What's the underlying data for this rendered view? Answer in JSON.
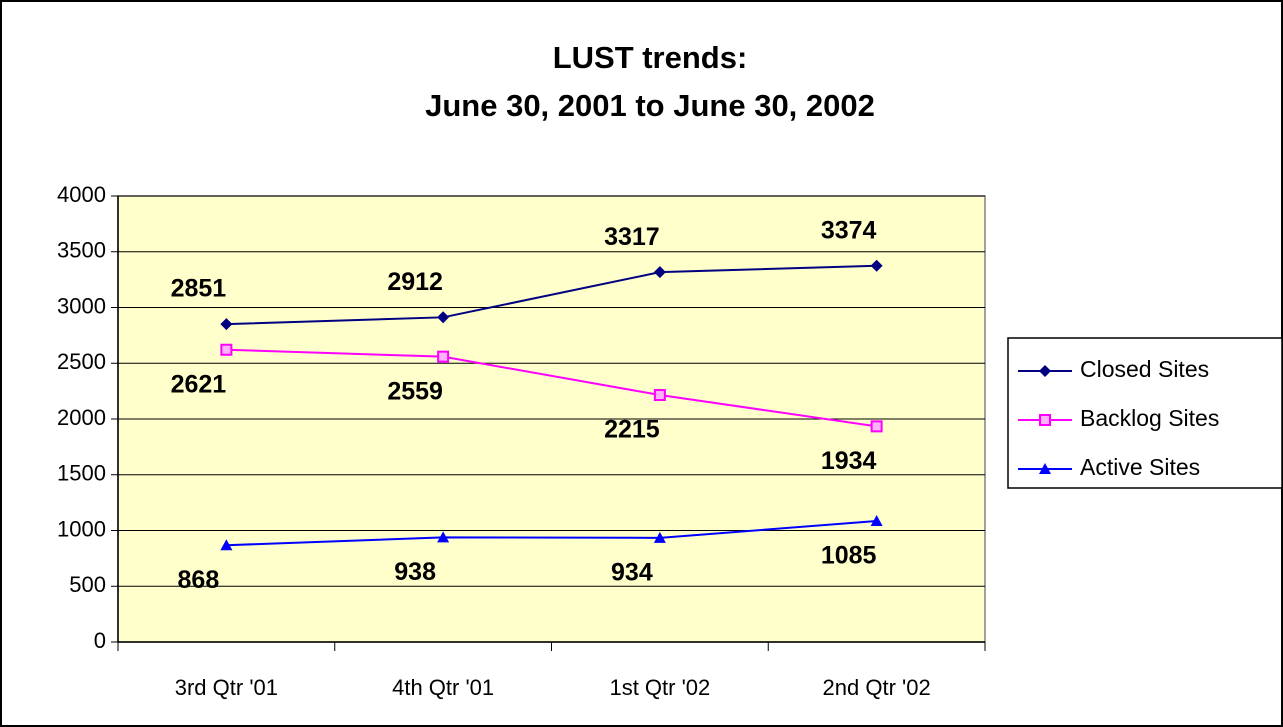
{
  "chart_data": {
    "type": "line",
    "title": [
      "LUST trends:",
      "June 30, 2001 to June 30, 2002"
    ],
    "categories": [
      "3rd Qtr '01",
      "4th Qtr '01",
      "1st Qtr '02",
      "2nd Qtr '02"
    ],
    "series": [
      {
        "name": "Closed Sites",
        "color": "#000080",
        "marker": "diamond",
        "label_side": "above",
        "values": [
          2851,
          2912,
          3317,
          3374
        ]
      },
      {
        "name": "Backlog Sites",
        "color": "#ff00ff",
        "marker": "square",
        "label_side": "below",
        "values": [
          2621,
          2559,
          2215,
          1934
        ]
      },
      {
        "name": "Active Sites",
        "color": "#0000ff",
        "marker": "triangle",
        "label_side": "below",
        "values": [
          868,
          938,
          934,
          1085
        ]
      }
    ],
    "ylim": [
      0,
      4000
    ],
    "yticks": [
      0,
      500,
      1000,
      1500,
      2000,
      2500,
      3000,
      3500,
      4000
    ],
    "grid": true,
    "plot_background": "#ffffcc",
    "legend": "right"
  }
}
